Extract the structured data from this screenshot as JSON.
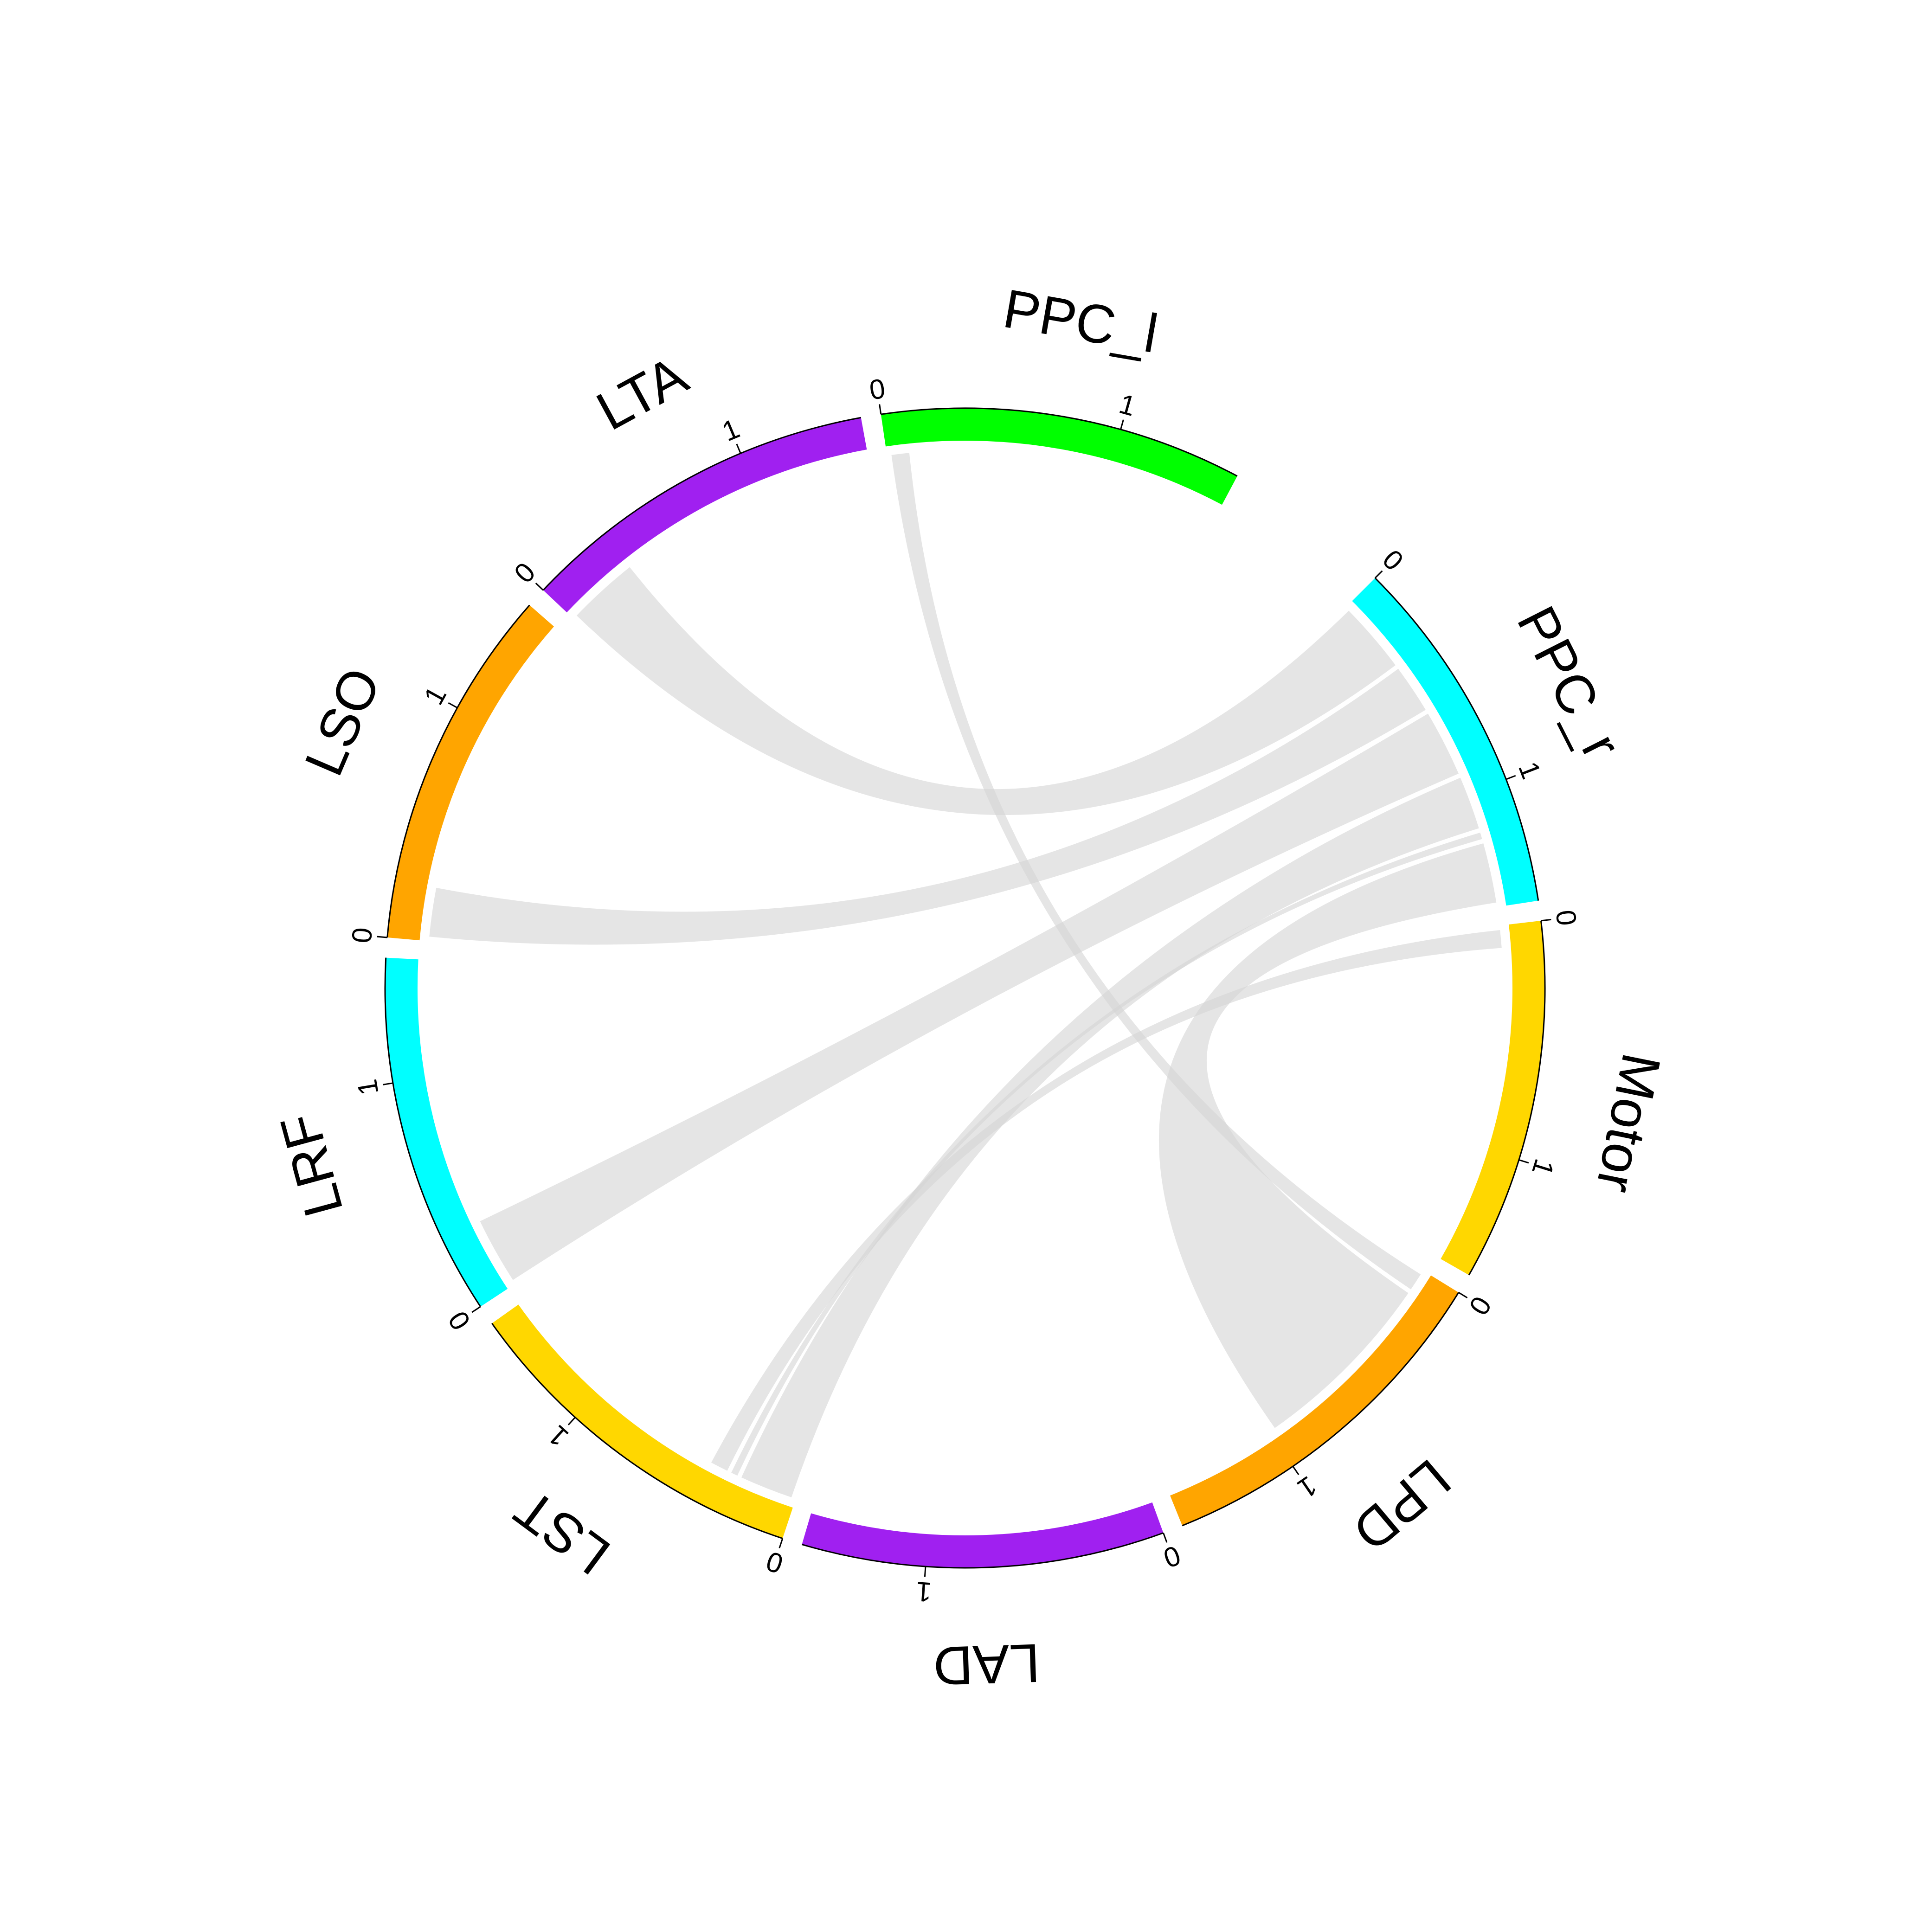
{
  "chart_data": {
    "type": "chord",
    "title": "",
    "start_degree": 45,
    "gap_degrees": 2,
    "big_gap_degrees": 17,
    "sectors": [
      {
        "name": "PPC_r",
        "value": 1.52,
        "color": "#00FFFF",
        "tick_labels": [
          "0",
          "1"
        ]
      },
      {
        "name": "Motor",
        "value": 1.52,
        "color": "#FFD700",
        "tick_labels": [
          "0",
          "1"
        ]
      },
      {
        "name": "LPD",
        "value": 1.52,
        "color": "#FFA500",
        "tick_labels": [
          "0",
          "1"
        ]
      },
      {
        "name": "LAD",
        "value": 1.52,
        "color": "#A020F0",
        "tick_labels": [
          "0",
          "1"
        ]
      },
      {
        "name": "LST",
        "value": 1.52,
        "color": "#FFD700",
        "tick_labels": [
          "0",
          "1"
        ]
      },
      {
        "name": "LRF",
        "value": 1.52,
        "color": "#00FFFF",
        "tick_labels": [
          "0",
          "1"
        ]
      },
      {
        "name": "LSO",
        "value": 1.52,
        "color": "#FFA500",
        "tick_labels": [
          "0",
          "1"
        ]
      },
      {
        "name": "LTA",
        "value": 1.52,
        "color": "#A020F0",
        "tick_labels": [
          "0",
          "1"
        ]
      },
      {
        "name": "PPC_l",
        "value": 1.52,
        "color": "#00FF00",
        "tick_labels": [
          "0",
          "1"
        ]
      }
    ],
    "links": [
      {
        "from": "PPC_r",
        "to": "LTA",
        "width": 0.32
      },
      {
        "from": "PPC_r",
        "to": "LSO",
        "width": 0.22
      },
      {
        "from": "PPC_r",
        "to": "LRF",
        "width": 0.3
      },
      {
        "from": "PPC_r",
        "to": "LST",
        "width": 0.24
      },
      {
        "from": "PPC_r",
        "to": "LST",
        "width": 0.03
      },
      {
        "from": "PPC_l",
        "to": "LPD",
        "width": 0.08
      },
      {
        "from": "Motor",
        "to": "LST",
        "width": 0.08
      },
      {
        "from": "LPD",
        "to": "PPC_r",
        "width": 0.85
      }
    ],
    "link_color": "#D3D3D3"
  }
}
